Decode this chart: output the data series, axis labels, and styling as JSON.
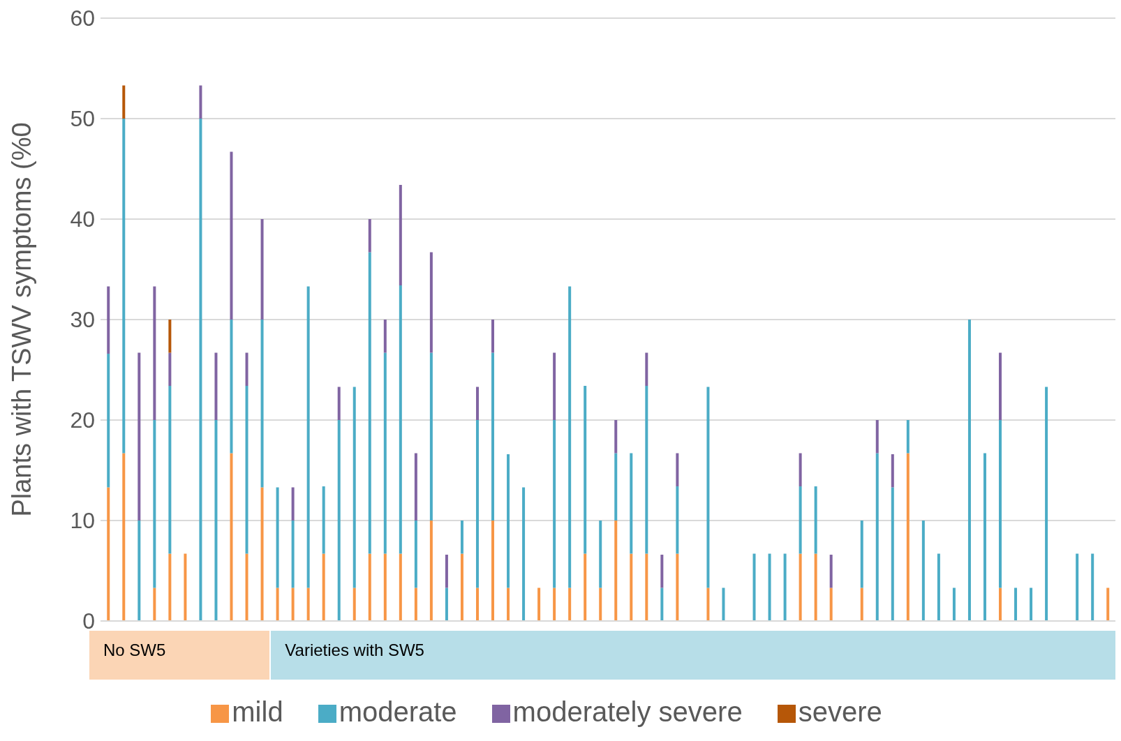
{
  "chart_data": {
    "type": "bar",
    "stacked": true,
    "ylabel": "Plants with TSWV symptoms (%0",
    "categories": [
      null,
      null,
      null,
      null,
      null,
      null,
      null,
      null,
      null,
      null,
      null,
      null,
      null,
      null,
      null,
      null,
      null,
      null,
      null,
      null,
      null,
      null,
      null,
      null,
      null,
      null,
      null,
      null,
      null,
      null,
      null,
      null,
      null,
      null,
      null,
      null,
      null,
      null,
      null,
      null,
      null,
      null,
      null,
      null,
      null,
      null,
      null,
      null,
      null,
      null,
      null,
      null,
      null,
      null,
      null,
      null,
      null,
      null,
      null,
      null,
      null,
      null,
      null,
      null,
      null,
      null
    ],
    "series": [
      {
        "name": "mild",
        "color": "#f79646",
        "values": [
          13.3,
          16.7,
          0,
          3.3,
          6.7,
          6.7,
          0,
          0,
          16.7,
          6.7,
          13.3,
          3.3,
          3.3,
          3.3,
          6.7,
          0,
          3.3,
          6.7,
          6.7,
          6.7,
          3.3,
          10,
          0,
          6.7,
          3.3,
          10,
          3.3,
          0,
          3.3,
          3.3,
          3.3,
          6.7,
          3.3,
          10,
          6.7,
          6.7,
          0,
          6.7,
          0,
          3.3,
          0,
          0,
          0,
          0,
          0,
          6.7,
          6.7,
          3.3,
          0,
          3.3,
          0,
          0,
          16.7,
          0,
          0,
          0,
          0,
          0,
          3.3,
          0,
          0,
          0,
          0,
          0,
          0,
          3.3
        ]
      },
      {
        "name": "moderate",
        "color": "#4bacc6",
        "values": [
          13.3,
          33.3,
          10,
          16.7,
          16.7,
          0,
          50,
          20,
          13.3,
          16.7,
          16.7,
          10,
          6.7,
          30,
          6.7,
          20,
          20,
          30,
          20,
          26.7,
          6.7,
          16.7,
          3.3,
          3.3,
          16.7,
          16.7,
          13.3,
          13.3,
          0,
          16.7,
          30,
          16.7,
          6.7,
          6.7,
          10,
          16.7,
          3.3,
          6.7,
          0,
          20,
          3.3,
          0,
          6.7,
          6.7,
          6.7,
          6.7,
          6.7,
          0,
          0,
          6.7,
          16.7,
          13.3,
          3.3,
          10,
          6.7,
          3.3,
          30,
          16.7,
          16.7,
          3.3,
          3.3,
          23.3,
          0,
          6.7,
          6.7,
          0
        ]
      },
      {
        "name": "moderately severe",
        "color": "#8064a2",
        "values": [
          6.7,
          0,
          16.7,
          13.3,
          3.3,
          0,
          3.3,
          6.7,
          16.7,
          3.3,
          10,
          0,
          3.3,
          0,
          0,
          3.3,
          0,
          3.3,
          3.3,
          10,
          6.7,
          10,
          3.3,
          0,
          3.3,
          3.3,
          0,
          0,
          0,
          6.7,
          0,
          0,
          0,
          3.3,
          0,
          3.3,
          3.3,
          3.3,
          0,
          0,
          0,
          0,
          0,
          0,
          0,
          3.3,
          0,
          3.3,
          0,
          0,
          3.3,
          3.3,
          0,
          0,
          0,
          0,
          0,
          0,
          6.7,
          0,
          0,
          0,
          0,
          0,
          0,
          0
        ]
      },
      {
        "name": "severe",
        "color": "#b65708",
        "values": [
          0,
          3.3,
          0,
          0,
          3.3,
          0,
          0,
          0,
          0,
          0,
          0,
          0,
          0,
          0,
          0,
          0,
          0,
          0,
          0,
          0,
          0,
          0,
          0,
          0,
          0,
          0,
          0,
          0,
          0,
          0,
          0,
          0,
          0,
          0,
          0,
          0,
          0,
          0,
          0,
          0,
          0,
          0,
          0,
          0,
          0,
          0,
          0,
          0,
          0,
          0,
          0,
          0,
          0,
          0,
          0,
          0,
          0,
          0,
          0,
          0,
          0,
          0,
          0,
          0,
          0,
          0
        ]
      }
    ],
    "ylim": [
      0,
      60
    ],
    "yticks": [
      0,
      10,
      20,
      30,
      40,
      50,
      60
    ],
    "grid": "y",
    "legend": "bottom",
    "annotations": [
      "No  SW5",
      "Varieties with SW5"
    ]
  }
}
